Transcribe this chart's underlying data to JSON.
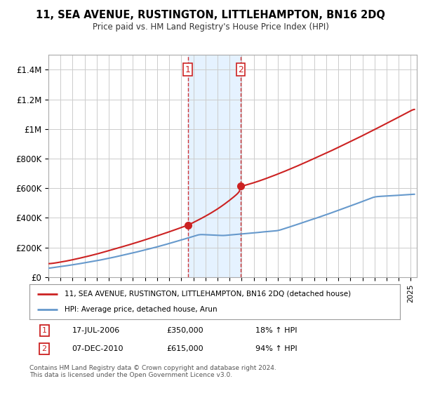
{
  "title": "11, SEA AVENUE, RUSTINGTON, LITTLEHAMPTON, BN16 2DQ",
  "subtitle": "Price paid vs. HM Land Registry's House Price Index (HPI)",
  "ylabel_ticks": [
    "£0",
    "£200K",
    "£400K",
    "£600K",
    "£800K",
    "£1M",
    "£1.2M",
    "£1.4M"
  ],
  "ytick_values": [
    0,
    200000,
    400000,
    600000,
    800000,
    1000000,
    1200000,
    1400000
  ],
  "ylim": [
    0,
    1500000
  ],
  "xlim_start": 1995.0,
  "xlim_end": 2025.5,
  "hpi_color": "#6699cc",
  "price_color": "#cc2222",
  "transaction1_x": 2006.54,
  "transaction1_y": 350000,
  "transaction2_x": 2010.92,
  "transaction2_y": 615000,
  "shade_x1": 2006.54,
  "shade_x2": 2010.92,
  "shade_color": "#ddeeff",
  "grid_color": "#cccccc",
  "bg_color": "#ffffff",
  "legend_label1": "11, SEA AVENUE, RUSTINGTON, LITTLEHAMPTON, BN16 2DQ (detached house)",
  "legend_label2": "HPI: Average price, detached house, Arun",
  "annotation1_date": "17-JUL-2006",
  "annotation1_price": "£350,000",
  "annotation1_hpi": "18% ↑ HPI",
  "annotation2_date": "07-DEC-2010",
  "annotation2_price": "£615,000",
  "annotation2_hpi": "94% ↑ HPI",
  "footer": "Contains HM Land Registry data © Crown copyright and database right 2024.\nThis data is licensed under the Open Government Licence v3.0."
}
